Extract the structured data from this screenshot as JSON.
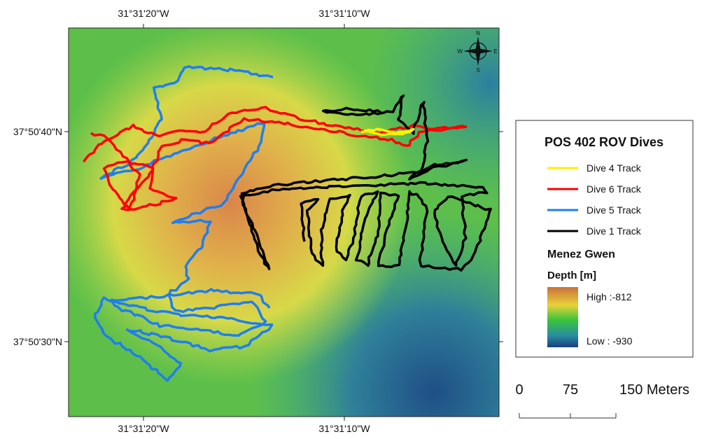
{
  "map": {
    "lon_labels_top": [
      "31°31'20\"W",
      "31°31'10\"W"
    ],
    "lon_labels_bottom": [
      "31°31'20\"W",
      "31°31'10\"W"
    ],
    "lat_labels": [
      "37°50'40\"N",
      "37°50'30\"N"
    ],
    "compass": {
      "n": "N",
      "s": "S",
      "e": "E",
      "w": "W"
    }
  },
  "legend": {
    "title": "POS 402 ROV Dives",
    "items": [
      {
        "label": "Dive 4 Track"
      },
      {
        "label": "Dive 6 Track"
      },
      {
        "label": "Dive 5 Track"
      },
      {
        "label": "Dive 1 Track"
      }
    ],
    "section_title": "Menez Gwen",
    "depth_title": "Depth [m]",
    "high_label": "High :-812",
    "low_label": "Low : -930"
  },
  "scale_bar": {
    "labels": [
      "0",
      "75",
      "150 Meters"
    ]
  }
}
